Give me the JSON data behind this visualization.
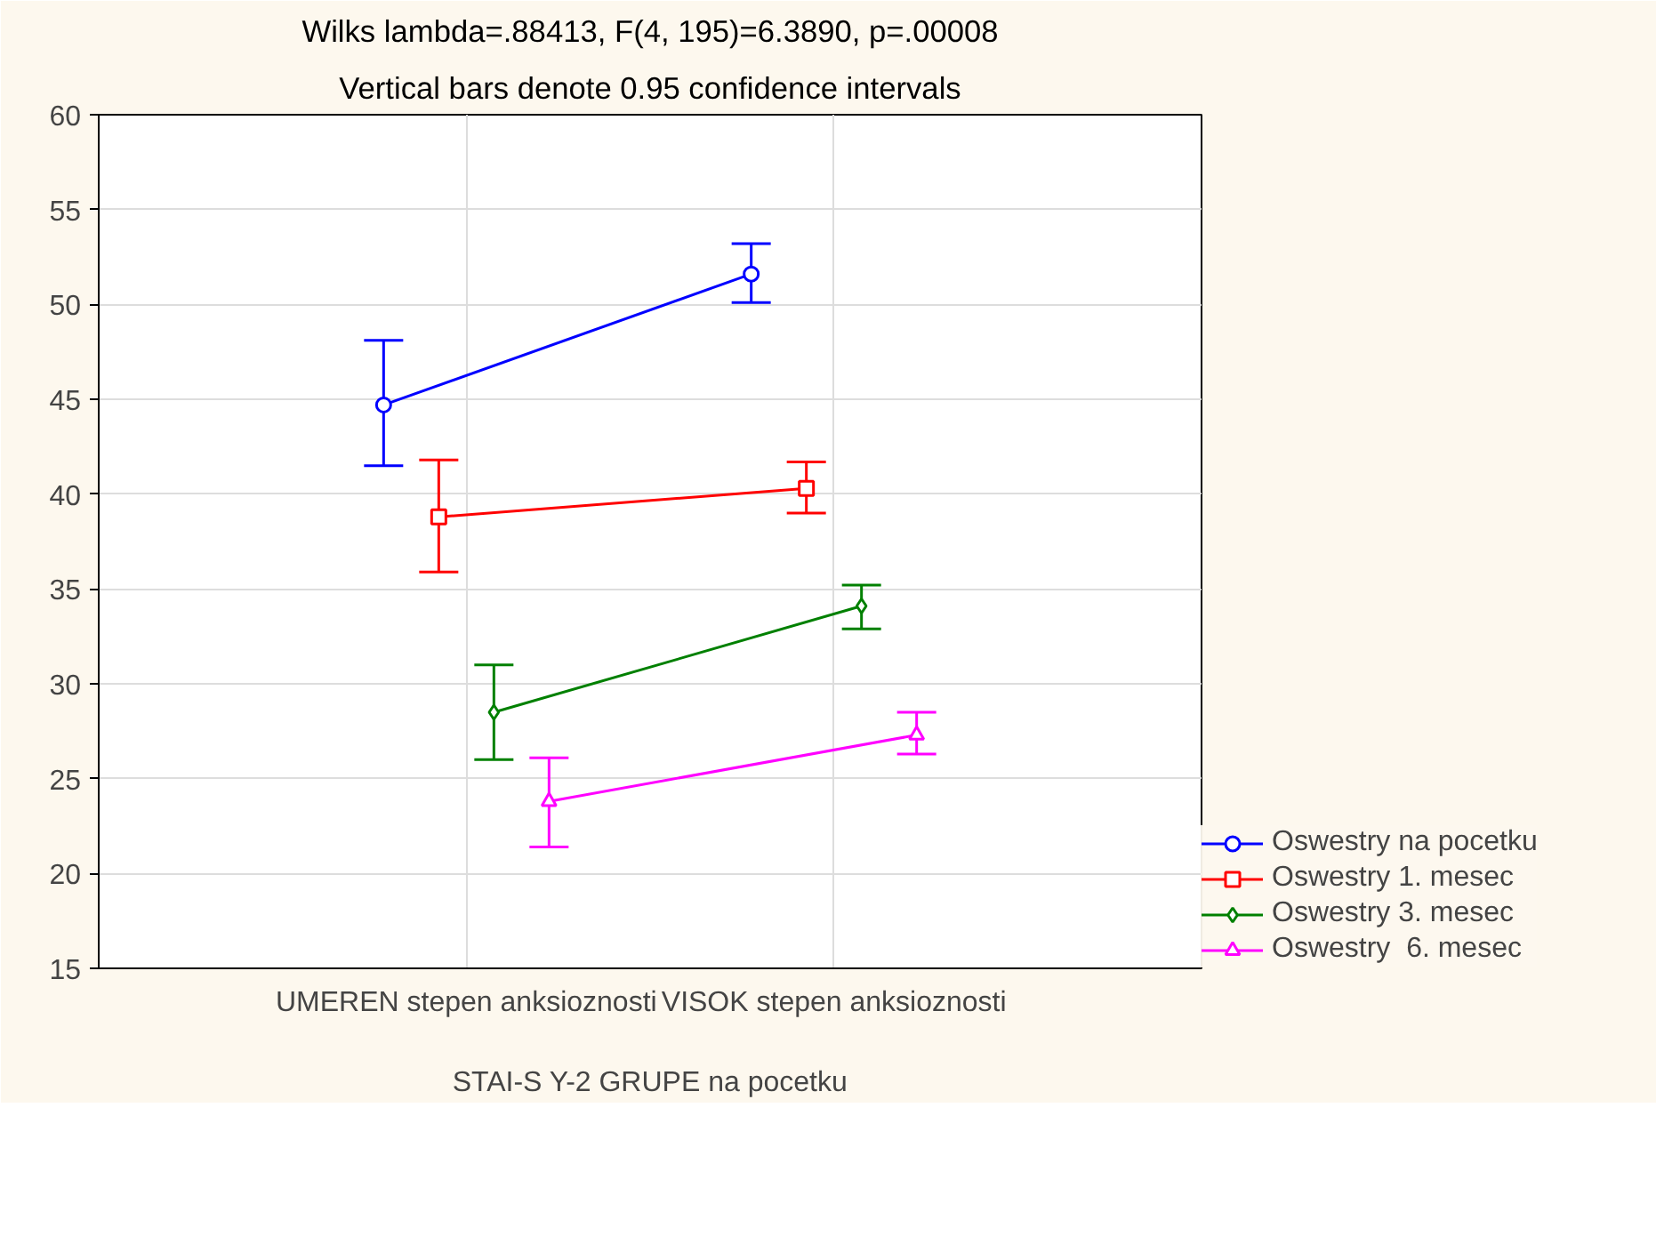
{
  "chart_data": {
    "type": "line",
    "title": "Wilks lambda=.88413, F(4, 195)=6.3890, p=.00008",
    "subtitle": "Vertical bars denote 0.95 confidence intervals",
    "xlabel": "STAI-S Y-2 GRUPE na pocetku",
    "categories": [
      "UMEREN stepen anksioznosti",
      "VISOK stepen anksioznosti"
    ],
    "series": [
      {
        "name": "Oswestry na pocetku",
        "color": "#0000ff",
        "marker": "circle",
        "values": [
          44.7,
          51.6
        ],
        "errors": [
          [
            41.5,
            48.1
          ],
          [
            50.1,
            53.2
          ]
        ]
      },
      {
        "name": "Oswestry 1. mesec",
        "color": "#ff0000",
        "marker": "square",
        "values": [
          38.8,
          40.3
        ],
        "errors": [
          [
            35.9,
            41.8
          ],
          [
            39.0,
            41.7
          ]
        ]
      },
      {
        "name": "Oswestry 3. mesec",
        "color": "#008000",
        "marker": "diamond",
        "values": [
          28.5,
          34.1
        ],
        "errors": [
          [
            26.0,
            31.0
          ],
          [
            32.9,
            35.2
          ]
        ]
      },
      {
        "name": "Oswestry  6. mesec",
        "color": "#ff00ff",
        "marker": "triangle",
        "values": [
          23.8,
          27.3
        ],
        "errors": [
          [
            21.4,
            26.1
          ],
          [
            26.3,
            28.5
          ]
        ]
      }
    ],
    "ylim": [
      15,
      60
    ],
    "yticks": [
      15,
      20,
      25,
      30,
      35,
      40,
      45,
      50,
      55,
      60
    ],
    "grid": true,
    "legend": "bottom right"
  }
}
